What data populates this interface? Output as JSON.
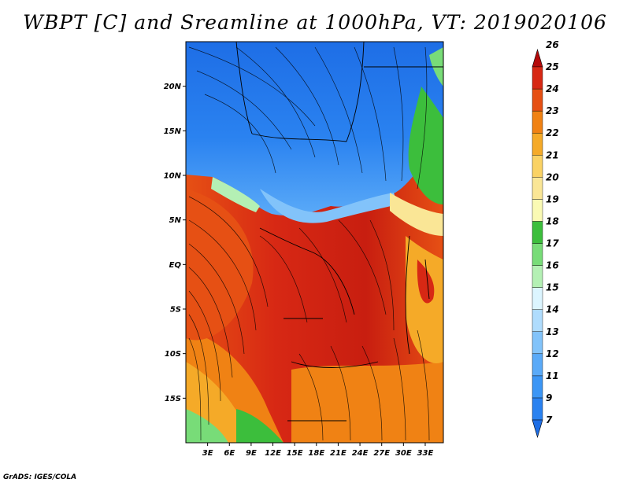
{
  "title": "WBPT [C] and Sreamline at 1000hPa, VT: 2019020106",
  "credit": "GrADS: IGES/COLA",
  "map": {
    "lon_range": [
      0,
      35.5
    ],
    "lat_range": [
      -20,
      25
    ],
    "lat_ticks": [
      {
        "value": 20,
        "label": "20N"
      },
      {
        "value": 15,
        "label": "15N"
      },
      {
        "value": 10,
        "label": "10N"
      },
      {
        "value": 5,
        "label": "5N"
      },
      {
        "value": 0,
        "label": "EQ"
      },
      {
        "value": -5,
        "label": "5S"
      },
      {
        "value": -10,
        "label": "10S"
      },
      {
        "value": -15,
        "label": "15S"
      }
    ],
    "lon_ticks": [
      {
        "value": 3,
        "label": "3E"
      },
      {
        "value": 6,
        "label": "6E"
      },
      {
        "value": 9,
        "label": "9E"
      },
      {
        "value": 12,
        "label": "12E"
      },
      {
        "value": 15,
        "label": "15E"
      },
      {
        "value": 18,
        "label": "18E"
      },
      {
        "value": 21,
        "label": "21E"
      },
      {
        "value": 24,
        "label": "24E"
      },
      {
        "value": 27,
        "label": "27E"
      },
      {
        "value": 30,
        "label": "30E"
      },
      {
        "value": 33,
        "label": "33E"
      }
    ]
  },
  "colorbar": {
    "levels": [
      "7",
      "9",
      "11",
      "12",
      "13",
      "14",
      "15",
      "16",
      "17",
      "18",
      "19",
      "20",
      "21",
      "22",
      "23",
      "24",
      "25",
      "26"
    ],
    "colors": [
      "#1e6ee6",
      "#2a82f0",
      "#3c96f5",
      "#5aaaf8",
      "#82c3fa",
      "#afdcfd",
      "#dcf5ff",
      "#b4f0b4",
      "#78dc78",
      "#3cbe3c",
      "#fafab4",
      "#fae696",
      "#fad264",
      "#f5aa28",
      "#f08214",
      "#e65014",
      "#d72814",
      "#b40a0a"
    ]
  }
}
